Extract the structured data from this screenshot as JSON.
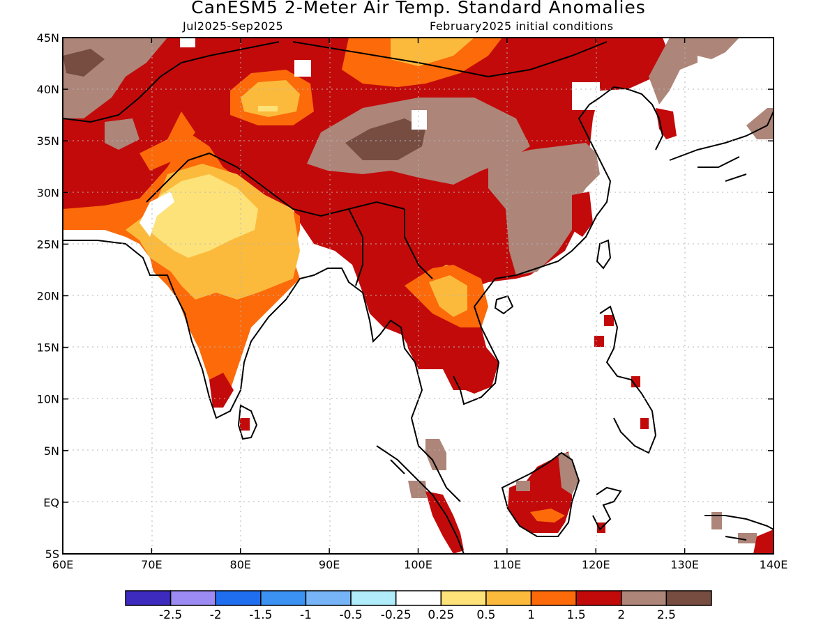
{
  "title": "CanESM5 2-Meter Air Temp. Standard Anomalies",
  "subtitle_left": "Jul2025-Sep2025",
  "subtitle_right": "February2025 initial conditions",
  "map": {
    "lon_range": [
      60,
      140
    ],
    "lat_range": [
      -5,
      45
    ],
    "lon_ticks": [
      "60E",
      "70E",
      "80E",
      "90E",
      "100E",
      "110E",
      "120E",
      "130E",
      "140E"
    ],
    "lat_ticks": [
      "45N",
      "40N",
      "35N",
      "30N",
      "25N",
      "20N",
      "15N",
      "10N",
      "5N",
      "EQ",
      "5S"
    ],
    "grid": true
  },
  "colorbar": {
    "colors": [
      "#3d2bbf",
      "#9d8bf4",
      "#1f6ef0",
      "#3c92f2",
      "#76b4f7",
      "#b0ecfa",
      "#ffffff",
      "#fde27a",
      "#fcba3c",
      "#fc6a0a",
      "#c30a0a",
      "#ad8579",
      "#774d42"
    ],
    "labels": [
      "-2.5",
      "-2",
      "-1.5",
      "-1",
      "-0.5",
      "-0.25",
      "0.25",
      "0.5",
      "1",
      "1.5",
      "2",
      "2.5"
    ]
  },
  "regions": [
    {
      "name": "northwest-dark-red",
      "color": "#c30a0a"
    },
    {
      "name": "tibet-grey",
      "color": "#ad8579"
    },
    {
      "name": "tibet-dark-brown",
      "color": "#774d42"
    },
    {
      "name": "india-orange",
      "color": "#fc6a0a"
    },
    {
      "name": "india-light-orange",
      "color": "#fcba3c"
    },
    {
      "name": "india-yellow",
      "color": "#fde27a"
    },
    {
      "name": "china-east-grey",
      "color": "#ad8579"
    },
    {
      "name": "indochina-red",
      "color": "#c30a0a"
    },
    {
      "name": "borneo-red",
      "color": "#c30a0a"
    }
  ]
}
